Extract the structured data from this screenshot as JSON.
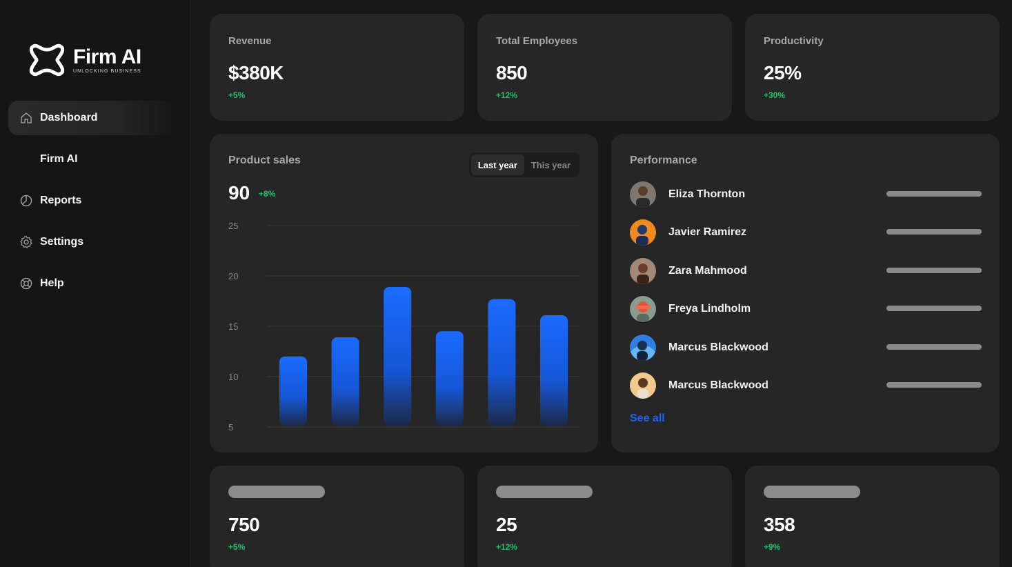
{
  "brand": {
    "name": "Firm AI",
    "tagline": "UNLOCKING BUSINESS"
  },
  "nav": [
    {
      "label": "Dashboard",
      "icon": "home-icon",
      "active": true
    },
    {
      "label": "Firm AI",
      "icon": "",
      "active": false
    },
    {
      "label": "Reports",
      "icon": "pie-chart-icon",
      "active": false
    },
    {
      "label": "Settings",
      "icon": "gear-icon",
      "active": false
    },
    {
      "label": "Help",
      "icon": "lifebuoy-icon",
      "active": false
    }
  ],
  "stats": [
    {
      "label": "Revenue",
      "value": "$380K",
      "change": "+5%"
    },
    {
      "label": "Total Employees",
      "value": "850",
      "change": "+12%"
    },
    {
      "label": "Productivity",
      "value": "25%",
      "change": "+30%"
    }
  ],
  "product_sales": {
    "title": "Product sales",
    "value": "90",
    "change": "+8%",
    "toggle": [
      "Last year",
      "This year"
    ]
  },
  "chart_data": {
    "type": "bar",
    "categories": [
      "",
      "",
      "",
      "",
      "",
      ""
    ],
    "values": [
      12,
      13.9,
      18.9,
      14.5,
      17.7,
      16.1
    ],
    "yticks": [
      "25",
      "20",
      "15",
      "10",
      "5"
    ],
    "ylim": [
      5,
      25
    ],
    "grid": true,
    "bar_color_top": "#1a6bff",
    "bar_color_bottom": "#122a6a"
  },
  "performance": {
    "title": "Performance",
    "people": [
      {
        "name": "Eliza Thornton",
        "progress": 1.0
      },
      {
        "name": "Javier Ramirez",
        "progress": 1.0
      },
      {
        "name": "Zara Mahmood",
        "progress": 1.0
      },
      {
        "name": "Freya Lindholm",
        "progress": 1.0
      },
      {
        "name": "Marcus Blackwood",
        "progress": 1.0
      },
      {
        "name": "Marcus Blackwood",
        "progress": 1.0
      }
    ],
    "see_all": "See all"
  },
  "bottom_stats": [
    {
      "value": "750",
      "change": "+5%"
    },
    {
      "value": "25",
      "change": "+12%"
    },
    {
      "value": "358",
      "change": "+9%"
    }
  ],
  "colors": {
    "accent": "#1e64f0",
    "positive": "#1fc16b",
    "card": "#262626",
    "background": "#181818"
  }
}
